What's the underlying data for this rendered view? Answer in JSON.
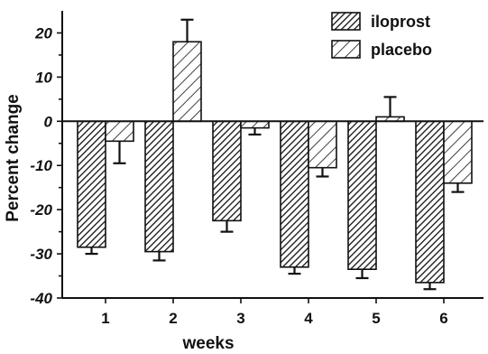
{
  "chart_data": {
    "type": "bar",
    "categories": [
      "1",
      "2",
      "3",
      "4",
      "5",
      "6"
    ],
    "series": [
      {
        "name": "iloprost",
        "values": [
          -28.5,
          -29.5,
          -22.5,
          -33,
          -33.5,
          -36.5
        ],
        "error": [
          1.5,
          2,
          2.5,
          1.5,
          2,
          1.5
        ],
        "pattern": "dense-hatch"
      },
      {
        "name": "placebo",
        "values": [
          -4.5,
          18,
          -1.5,
          -10.5,
          1,
          -14
        ],
        "error": [
          5,
          5,
          1.5,
          2,
          4.5,
          2
        ],
        "pattern": "sparse-hatch"
      }
    ],
    "xlabel": "weeks",
    "ylabel": "Percent change",
    "yticks": [
      20,
      10,
      0,
      -10,
      -20,
      -30,
      -40
    ],
    "ylim": [
      -40,
      25
    ],
    "legend_position": "top-right",
    "grid": false,
    "error_bars": "one-sided (away from zero)"
  },
  "colors": {
    "ink": "#111111",
    "background": "#ffffff"
  }
}
